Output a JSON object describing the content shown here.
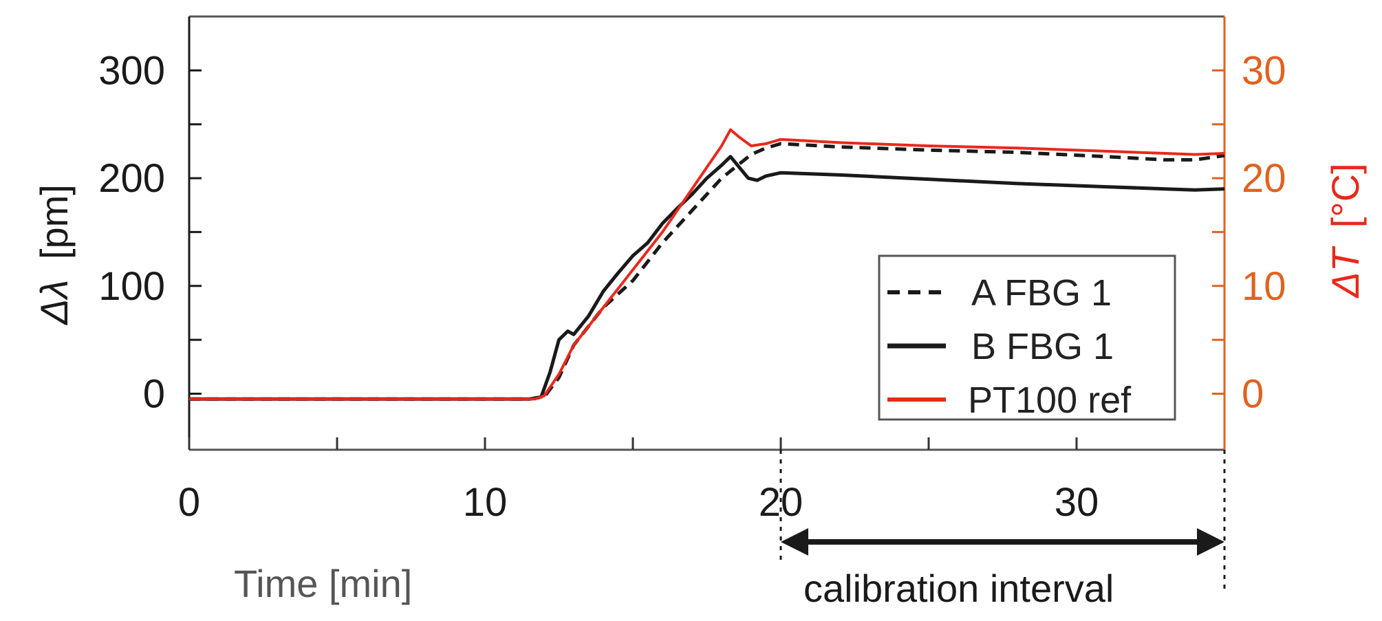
{
  "chart_data": {
    "type": "line",
    "xlabel": "Time [min]",
    "ylabel_left_prefix": "Δλ",
    "ylabel_left_unit": "[pm]",
    "ylabel_right_prefix": "ΔT",
    "ylabel_right_unit": "[°C]",
    "xlim": [
      0,
      35
    ],
    "ylim_left": [
      -52,
      350
    ],
    "ylim_right": [
      -5.2,
      35
    ],
    "x_ticks": [
      0,
      10,
      20,
      30
    ],
    "x_minor_ticks": [
      5,
      15,
      25
    ],
    "y_left_ticks": [
      0,
      100,
      200,
      300
    ],
    "y_left_minor_ticks": [
      50,
      150,
      250
    ],
    "y_right_ticks": [
      0,
      10,
      20,
      30
    ],
    "y_right_minor_ticks": [
      5,
      15,
      25
    ],
    "grid": false,
    "legend_position": "bottom-right",
    "colors": {
      "axis_left": "#1a1a1a",
      "axis_right": "#e0621f",
      "right_label": "#e8291c",
      "series_a": "#1a1a1a",
      "series_b": "#1a1a1a",
      "series_ref": "#e8291c",
      "xlabel": "#555555"
    },
    "series": [
      {
        "name": "A FBG 1",
        "style": "dashed",
        "axis": "left",
        "x": [
          0,
          11.5,
          12.0,
          12.5,
          13.0,
          14.0,
          15.0,
          16.0,
          17.0,
          18.0,
          19.0,
          19.5,
          20.0,
          22.0,
          25.0,
          28.0,
          31.0,
          33.0,
          34.0,
          35.0
        ],
        "y": [
          -5,
          -5,
          -3,
          15,
          45,
          80,
          105,
          140,
          170,
          200,
          222,
          228,
          232,
          229,
          226,
          224,
          220,
          217,
          217,
          221
        ]
      },
      {
        "name": "B FBG 1",
        "style": "solid",
        "axis": "left",
        "x": [
          0,
          11.5,
          11.9,
          12.2,
          12.5,
          12.8,
          13.0,
          13.5,
          14.0,
          14.5,
          15.0,
          15.5,
          16.0,
          16.5,
          17.0,
          17.5,
          18.0,
          18.3,
          18.6,
          18.9,
          19.2,
          19.5,
          20.0,
          22.0,
          25.0,
          28.0,
          31.0,
          33.0,
          34.0,
          35.0
        ],
        "y": [
          -5,
          -5,
          -3,
          20,
          50,
          58,
          55,
          72,
          95,
          112,
          128,
          140,
          158,
          172,
          185,
          200,
          212,
          220,
          210,
          200,
          198,
          202,
          205,
          203,
          199,
          195,
          192,
          190,
          189,
          190
        ]
      },
      {
        "name": "PT100 ref",
        "style": "solid",
        "axis": "right",
        "x": [
          0,
          11.7,
          12.0,
          12.5,
          13.0,
          14.0,
          15.0,
          16.0,
          16.5,
          17.0,
          17.5,
          18.0,
          18.3,
          18.6,
          19.0,
          19.5,
          20.0,
          22.0,
          25.0,
          28.0,
          31.0,
          33.0,
          34.0,
          35.0
        ],
        "y": [
          -0.5,
          -0.5,
          -0.2,
          1.8,
          4.5,
          8.0,
          11.5,
          15.0,
          17.0,
          19.0,
          21.0,
          23.0,
          24.5,
          23.8,
          23.0,
          23.2,
          23.6,
          23.3,
          23.0,
          22.8,
          22.5,
          22.3,
          22.2,
          22.3
        ]
      }
    ],
    "annotations": {
      "calibration_label": "calibration interval",
      "calibration_start": 20,
      "calibration_end": 35
    }
  }
}
